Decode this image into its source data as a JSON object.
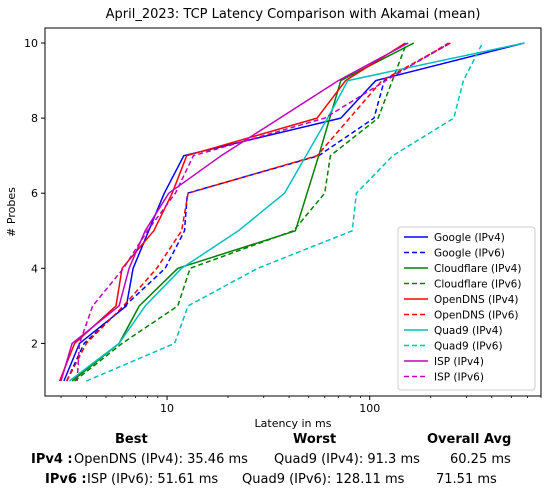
{
  "chart_data": {
    "type": "line",
    "title": "April_2023: TCP Latency Comparison with Akamai (mean)",
    "xlabel": "Latency in ms",
    "ylabel": "# Probes",
    "x_scale": "log",
    "xlim": [
      2.5,
      700
    ],
    "ylim": [
      0.6,
      10.4
    ],
    "x_ticks": [
      10,
      100
    ],
    "x_tick_labels": [
      "10",
      "100"
    ],
    "y_ticks": [
      2,
      4,
      6,
      8,
      10
    ],
    "y_tick_labels": [
      "2",
      "4",
      "6",
      "8",
      "10"
    ],
    "grid": false,
    "legend_position": "lower-right",
    "series": [
      {
        "name": "Google (IPv4)",
        "color": "#0000ff",
        "dash": "solid",
        "points": [
          [
            3.1,
            1
          ],
          [
            3.7,
            2
          ],
          [
            6.3,
            3
          ],
          [
            6.8,
            4
          ],
          [
            9.7,
            6
          ],
          [
            12.1,
            7
          ],
          [
            72,
            8
          ],
          [
            107,
            9
          ],
          [
            580,
            10
          ]
        ]
      },
      {
        "name": "Google (IPv6)",
        "color": "#0000ff",
        "dash": "dashed",
        "points": [
          [
            3.2,
            1
          ],
          [
            3.9,
            2
          ],
          [
            6.2,
            3
          ],
          [
            9.8,
            4
          ],
          [
            12.2,
            5
          ],
          [
            12.6,
            6
          ],
          [
            56,
            7
          ],
          [
            105,
            8
          ],
          [
            118,
            9
          ],
          [
            250,
            10
          ]
        ]
      },
      {
        "name": "Cloudflare (IPv4)",
        "color": "#008000",
        "dash": "solid",
        "points": [
          [
            3.4,
            1
          ],
          [
            5.8,
            2
          ],
          [
            7.3,
            3
          ],
          [
            11.3,
            4
          ],
          [
            43,
            5
          ],
          [
            56,
            7
          ],
          [
            72,
            9
          ],
          [
            165,
            10
          ]
        ]
      },
      {
        "name": "Cloudflare (IPv6)",
        "color": "#008000",
        "dash": "dashed",
        "points": [
          [
            3.5,
            1
          ],
          [
            6.0,
            2
          ],
          [
            11.3,
            3
          ],
          [
            13,
            4
          ],
          [
            42,
            5
          ],
          [
            60,
            6
          ],
          [
            64,
            7
          ],
          [
            110,
            8
          ],
          [
            152,
            10
          ]
        ]
      },
      {
        "name": "OpenDNS (IPv4)",
        "color": "#ff0000",
        "dash": "solid",
        "points": [
          [
            2.95,
            1
          ],
          [
            3.5,
            2
          ],
          [
            5.6,
            3
          ],
          [
            6.0,
            4
          ],
          [
            8.6,
            5
          ],
          [
            10.6,
            6
          ],
          [
            12.5,
            7
          ],
          [
            55,
            8
          ],
          [
            76,
            9
          ],
          [
            150,
            10
          ]
        ]
      },
      {
        "name": "OpenDNS (IPv6)",
        "color": "#ff0000",
        "dash": "dashed",
        "points": [
          [
            3.2,
            1
          ],
          [
            4.0,
            2
          ],
          [
            6.1,
            3
          ],
          [
            8.9,
            4
          ],
          [
            11.8,
            5
          ],
          [
            12.7,
            6
          ],
          [
            55,
            7
          ],
          [
            115,
            9
          ],
          [
            250,
            10
          ]
        ]
      },
      {
        "name": "Quad9 (IPv4)",
        "color": "#00bfbf",
        "dash": "solid",
        "points": [
          [
            3.3,
            1
          ],
          [
            5.8,
            2
          ],
          [
            7.8,
            3
          ],
          [
            11.8,
            4
          ],
          [
            22.5,
            5
          ],
          [
            38,
            6
          ],
          [
            62,
            8
          ],
          [
            78,
            9
          ],
          [
            580,
            10
          ]
        ]
      },
      {
        "name": "Quad9 (IPv6)",
        "color": "#00bfbf",
        "dash": "dashed",
        "points": [
          [
            4.0,
            1
          ],
          [
            10.9,
            2
          ],
          [
            12.7,
            3
          ],
          [
            28,
            4
          ],
          [
            82,
            5
          ],
          [
            86,
            6
          ],
          [
            130,
            7
          ],
          [
            260,
            8
          ],
          [
            290,
            9
          ],
          [
            360,
            10
          ]
        ]
      },
      {
        "name": "ISP (IPv4)",
        "color": "#bf00bf",
        "dash": "solid",
        "points": [
          [
            3.0,
            1
          ],
          [
            3.4,
            2
          ],
          [
            5.8,
            3
          ],
          [
            6.5,
            4
          ],
          [
            7.8,
            5
          ],
          [
            10.2,
            6
          ],
          [
            18.5,
            7
          ],
          [
            36,
            8
          ],
          [
            70,
            9
          ],
          [
            155,
            10
          ]
        ]
      },
      {
        "name": "ISP (IPv6)",
        "color": "#bf00bf",
        "dash": "dashed",
        "points": [
          [
            3.6,
            1
          ],
          [
            3.7,
            2
          ],
          [
            4.3,
            3
          ],
          [
            6.1,
            4
          ],
          [
            8.0,
            5
          ],
          [
            11,
            6
          ],
          [
            13.5,
            7
          ],
          [
            60,
            8
          ],
          [
            120,
            9
          ],
          [
            245,
            10
          ]
        ]
      }
    ]
  },
  "summary": {
    "headers": {
      "best": "Best",
      "worst": "Worst",
      "avg": "Overall Avg"
    },
    "rows": [
      {
        "label": "IPv4 :",
        "best": "OpenDNS (IPv4): 35.46 ms",
        "worst": "Quad9 (IPv4): 91.3 ms",
        "avg": "60.25 ms"
      },
      {
        "label": "IPv6 :",
        "best": "ISP (IPv6): 51.61 ms",
        "worst": "Quad9 (IPv6): 128.11 ms",
        "avg": "71.51 ms"
      }
    ]
  }
}
